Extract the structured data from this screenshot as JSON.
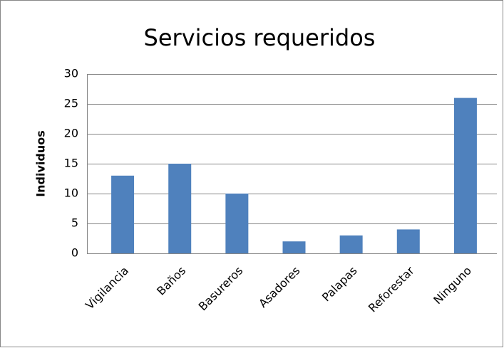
{
  "chart_data": {
    "type": "bar",
    "title": "Servicios requeridos",
    "y_label": "Individuos",
    "categories": [
      "Vigilancia",
      "Baños",
      "Basureros",
      "Asadores",
      "Palapas",
      "Reforestar",
      "Ninguno"
    ],
    "values": [
      13,
      15,
      10,
      2,
      3,
      4,
      26
    ],
    "color": "#4f81bd",
    "ylim": [
      0,
      30
    ],
    "yticks": [
      0,
      5,
      10,
      15,
      20,
      25,
      30
    ],
    "grid": true
  }
}
